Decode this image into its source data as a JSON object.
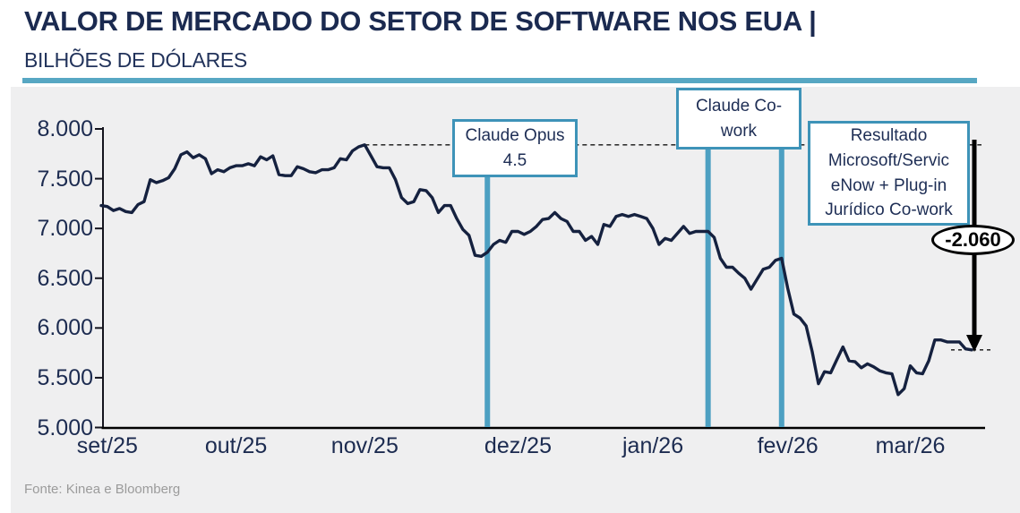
{
  "header": {
    "title": "VALOR DE MERCADO DO SETOR DE SOFTWARE NOS EUA |",
    "subtitle": "BILHÕES DE DÓLARES"
  },
  "source": "Fonte: Kinea e Bloomberg",
  "colors": {
    "accent_teal": "#4DA0C2",
    "box_border_teal": "#3E93B8",
    "navy": "#1C2B50",
    "line_navy": "#15213F",
    "panel_gray": "#EFEFF0",
    "black": "#000000"
  },
  "chart_data": {
    "type": "line",
    "title": "Valor de mercado do setor de software nos EUA",
    "ylabel": "Bilhões de dólares",
    "xlabel": "",
    "grid": false,
    "legend": "none",
    "ylim": [
      5000,
      8000
    ],
    "y_ticks": [
      "8.000",
      "7.500",
      "7.000",
      "6.500",
      "6.000",
      "5.500",
      "5.000"
    ],
    "y_tick_values": [
      8000,
      7500,
      7000,
      6500,
      6000,
      5500,
      5000
    ],
    "x_ticks": [
      {
        "label": "set/25",
        "index": 1
      },
      {
        "label": "out/25",
        "index": 22
      },
      {
        "label": "nov/25",
        "index": 43
      },
      {
        "label": "dez/25",
        "index": 68
      },
      {
        "label": "jan/26",
        "index": 90
      },
      {
        "label": "fev/26",
        "index": 112
      },
      {
        "label": "mar/26",
        "index": 132
      }
    ],
    "values": [
      7230,
      7220,
      7180,
      7200,
      7170,
      7160,
      7240,
      7270,
      7490,
      7460,
      7480,
      7510,
      7600,
      7740,
      7770,
      7710,
      7740,
      7700,
      7550,
      7590,
      7570,
      7610,
      7630,
      7630,
      7650,
      7630,
      7720,
      7690,
      7730,
      7540,
      7530,
      7530,
      7620,
      7600,
      7570,
      7560,
      7590,
      7590,
      7610,
      7700,
      7690,
      7780,
      7820,
      7840,
      7730,
      7620,
      7610,
      7610,
      7490,
      7310,
      7250,
      7270,
      7390,
      7380,
      7310,
      7160,
      7230,
      7230,
      7100,
      6990,
      6930,
      6730,
      6720,
      6760,
      6840,
      6880,
      6860,
      6970,
      6970,
      6940,
      6970,
      7020,
      7090,
      7100,
      7160,
      7100,
      7070,
      6970,
      6970,
      6880,
      6920,
      6840,
      7040,
      7020,
      7120,
      7140,
      7120,
      7140,
      7120,
      7100,
      7000,
      6840,
      6900,
      6880,
      6950,
      7020,
      6950,
      6970,
      6970,
      6970,
      6910,
      6700,
      6610,
      6610,
      6550,
      6500,
      6390,
      6490,
      6590,
      6610,
      6680,
      6700,
      6400,
      6140,
      6100,
      6020,
      5760,
      5440,
      5560,
      5550,
      5680,
      5810,
      5670,
      5660,
      5600,
      5640,
      5610,
      5570,
      5550,
      5540,
      5330,
      5390,
      5620,
      5550,
      5540,
      5670,
      5880,
      5880,
      5860,
      5860,
      5860,
      5790,
      5780
    ],
    "peak_value": 7840,
    "peak_index": 43,
    "end_value": 5780,
    "annotations": [
      {
        "id": "claude-opus-45",
        "text": "Claude Opus\n4.5",
        "line_indices": [
          63
        ]
      },
      {
        "id": "claude-cowork",
        "text": "Claude Co-\nwork",
        "line_indices": [
          99,
          111
        ]
      },
      {
        "id": "resultado",
        "text": "Resultado\nMicrosoft/Servic\neNow + Plug-in\nJurídico Co-work",
        "line_indices": []
      }
    ],
    "drop_badge": {
      "label": "-2.060",
      "value": -2060
    }
  }
}
